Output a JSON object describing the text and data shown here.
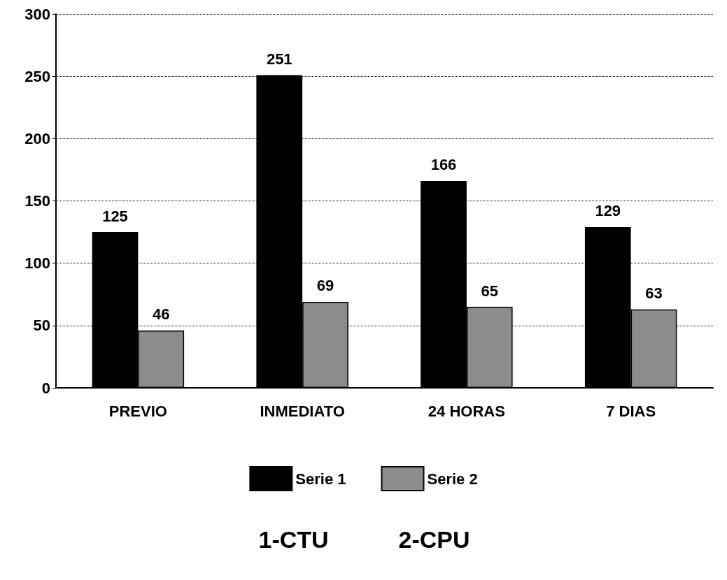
{
  "chart_data": {
    "type": "bar",
    "categories": [
      "PREVIO",
      "INMEDIATO",
      "24 HORAS",
      "7 DIAS"
    ],
    "series": [
      {
        "name": "Serie 1",
        "color": "#000000",
        "values": [
          125,
          251,
          166,
          129
        ]
      },
      {
        "name": "Serie 2",
        "color": "#8c8c8c",
        "values": [
          46,
          69,
          65,
          63
        ]
      }
    ],
    "ylim": [
      0,
      300
    ],
    "yticks": [
      0,
      50,
      100,
      150,
      200,
      250,
      300
    ],
    "grid": "y",
    "legend": "bottom",
    "data_labels": true,
    "annotations": [
      "1-CTU",
      "2-CPU"
    ]
  }
}
